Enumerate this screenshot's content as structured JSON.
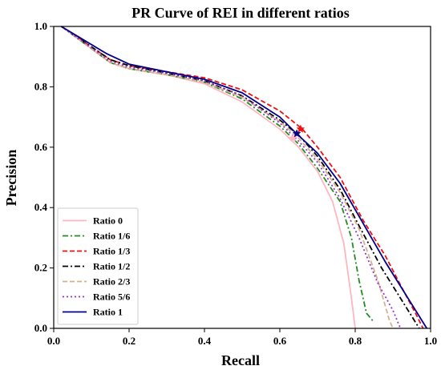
{
  "chart_data": {
    "type": "line",
    "title": "PR Curve of REI in different ratios",
    "xlabel": "Recall",
    "ylabel": "Precision",
    "xlim": [
      0.0,
      1.0
    ],
    "ylim": [
      0.0,
      1.0
    ],
    "xticks": [
      "0.0",
      "0.2",
      "0.4",
      "0.6",
      "0.8",
      "1.0"
    ],
    "yticks": [
      "0.0",
      "0.2",
      "0.4",
      "0.6",
      "0.8",
      "1.0"
    ],
    "grid": false,
    "legend_position": "lower-left",
    "series": [
      {
        "name": "Ratio 0",
        "color": "#ffb6c1",
        "dash": "solid",
        "points": [
          [
            0.02,
            1.0
          ],
          [
            0.15,
            0.88
          ],
          [
            0.2,
            0.86
          ],
          [
            0.3,
            0.84
          ],
          [
            0.4,
            0.81
          ],
          [
            0.5,
            0.75
          ],
          [
            0.6,
            0.66
          ],
          [
            0.65,
            0.6
          ],
          [
            0.7,
            0.52
          ],
          [
            0.74,
            0.42
          ],
          [
            0.77,
            0.28
          ],
          [
            0.79,
            0.1
          ],
          [
            0.8,
            0.0
          ]
        ]
      },
      {
        "name": "Ratio 1/6",
        "color": "#228b22",
        "dash": "dashdot",
        "points": [
          [
            0.02,
            1.0
          ],
          [
            0.15,
            0.88
          ],
          [
            0.2,
            0.86
          ],
          [
            0.3,
            0.84
          ],
          [
            0.4,
            0.815
          ],
          [
            0.5,
            0.76
          ],
          [
            0.6,
            0.67
          ],
          [
            0.65,
            0.61
          ],
          [
            0.7,
            0.53
          ],
          [
            0.76,
            0.42
          ],
          [
            0.79,
            0.3
          ],
          [
            0.81,
            0.16
          ],
          [
            0.83,
            0.05
          ],
          [
            0.85,
            0.02
          ]
        ]
      },
      {
        "name": "Ratio 1/3",
        "color": "#ee1111",
        "dash": "dashed",
        "points": [
          [
            0.02,
            1.0
          ],
          [
            0.15,
            0.89
          ],
          [
            0.2,
            0.87
          ],
          [
            0.3,
            0.85
          ],
          [
            0.4,
            0.83
          ],
          [
            0.5,
            0.79
          ],
          [
            0.6,
            0.72
          ],
          [
            0.66,
            0.66
          ],
          [
            0.7,
            0.6
          ],
          [
            0.76,
            0.5
          ],
          [
            0.82,
            0.36
          ],
          [
            0.88,
            0.24
          ],
          [
            0.93,
            0.12
          ],
          [
            0.96,
            0.05
          ],
          [
            0.98,
            0.0
          ]
        ]
      },
      {
        "name": "Ratio 1/2",
        "color": "#000000",
        "dash": "dashdot",
        "points": [
          [
            0.02,
            1.0
          ],
          [
            0.15,
            0.89
          ],
          [
            0.2,
            0.87
          ],
          [
            0.3,
            0.845
          ],
          [
            0.4,
            0.82
          ],
          [
            0.5,
            0.77
          ],
          [
            0.6,
            0.69
          ],
          [
            0.65,
            0.64
          ],
          [
            0.7,
            0.57
          ],
          [
            0.76,
            0.46
          ],
          [
            0.81,
            0.34
          ],
          [
            0.87,
            0.2
          ],
          [
            0.93,
            0.08
          ],
          [
            0.97,
            0.0
          ]
        ]
      },
      {
        "name": "Ratio 2/3",
        "color": "#d2b48c",
        "dash": "dashed",
        "points": [
          [
            0.02,
            1.0
          ],
          [
            0.15,
            0.88
          ],
          [
            0.2,
            0.86
          ],
          [
            0.3,
            0.84
          ],
          [
            0.4,
            0.815
          ],
          [
            0.5,
            0.765
          ],
          [
            0.6,
            0.685
          ],
          [
            0.65,
            0.63
          ],
          [
            0.7,
            0.56
          ],
          [
            0.76,
            0.45
          ],
          [
            0.81,
            0.33
          ],
          [
            0.86,
            0.16
          ],
          [
            0.89,
            0.03
          ],
          [
            0.9,
            0.0
          ]
        ]
      },
      {
        "name": "Ratio 5/6",
        "color": "#9932cc",
        "dash": "dotted",
        "points": [
          [
            0.02,
            1.0
          ],
          [
            0.15,
            0.885
          ],
          [
            0.2,
            0.865
          ],
          [
            0.3,
            0.845
          ],
          [
            0.4,
            0.82
          ],
          [
            0.5,
            0.77
          ],
          [
            0.6,
            0.68
          ],
          [
            0.65,
            0.62
          ],
          [
            0.7,
            0.55
          ],
          [
            0.76,
            0.43
          ],
          [
            0.81,
            0.3
          ],
          [
            0.86,
            0.15
          ],
          [
            0.9,
            0.06
          ],
          [
            0.92,
            0.0
          ]
        ]
      },
      {
        "name": "Ratio 1",
        "color": "#00008b",
        "dash": "solid",
        "points": [
          [
            0.02,
            1.0
          ],
          [
            0.14,
            0.91
          ],
          [
            0.2,
            0.875
          ],
          [
            0.3,
            0.85
          ],
          [
            0.4,
            0.825
          ],
          [
            0.5,
            0.78
          ],
          [
            0.6,
            0.7
          ],
          [
            0.64,
            0.65
          ],
          [
            0.7,
            0.58
          ],
          [
            0.76,
            0.48
          ],
          [
            0.82,
            0.35
          ],
          [
            0.88,
            0.22
          ],
          [
            0.94,
            0.1
          ],
          [
            0.98,
            0.02
          ],
          [
            0.99,
            0.0
          ]
        ]
      }
    ],
    "markers": [
      {
        "series": "Ratio 1/3",
        "x": 0.655,
        "y": 0.66,
        "color": "#ee1111"
      },
      {
        "series": "Ratio 0",
        "x": 0.635,
        "y": 0.63,
        "color": "#ffb6c1"
      },
      {
        "series": "Ratio 1",
        "x": 0.645,
        "y": 0.645,
        "color": "#00008b"
      }
    ]
  }
}
